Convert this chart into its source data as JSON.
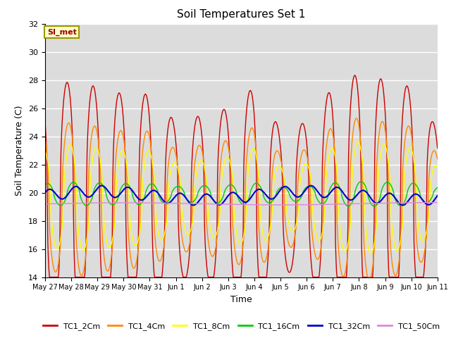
{
  "title": "Soil Temperatures Set 1",
  "xlabel": "Time",
  "ylabel": "Soil Temperature (C)",
  "ylim": [
    14,
    32
  ],
  "yticks": [
    14,
    16,
    18,
    20,
    22,
    24,
    26,
    28,
    30,
    32
  ],
  "background_color": "#dcdcdc",
  "series": [
    {
      "label": "TC1_2Cm",
      "color": "#cc0000",
      "lw": 1.0
    },
    {
      "label": "TC1_4Cm",
      "color": "#ff8800",
      "lw": 1.0
    },
    {
      "label": "TC1_8Cm",
      "color": "#ffff00",
      "lw": 1.0
    },
    {
      "label": "TC1_16Cm",
      "color": "#00cc00",
      "lw": 1.0
    },
    {
      "label": "TC1_32Cm",
      "color": "#0000cc",
      "lw": 1.5
    },
    {
      "label": "TC1_50Cm",
      "color": "#dd88dd",
      "lw": 1.0
    }
  ],
  "annotation_text": "SI_met",
  "annotation_color": "#990000",
  "annotation_bg": "#ffffcc",
  "annotation_border": "#999900",
  "xtick_labels": [
    "May 27",
    "May 28",
    "May 29",
    "May 30",
    "May 31",
    "Jun 1",
    "Jun 2",
    "Jun 3",
    "Jun 4",
    "Jun 5",
    "Jun 6",
    "Jun 7",
    "Jun 8",
    "Jun 9",
    "Jun 10",
    "Jun 11"
  ],
  "n_days": 15,
  "pts_per_day": 48,
  "base_temp": 19.5,
  "amp_2cm_per_day": [
    7.5,
    8.5,
    8.0,
    7.5,
    7.5,
    5.5,
    6.0,
    6.5,
    8.0,
    5.0,
    5.5,
    8.0,
    9.0,
    8.5,
    8.0,
    5.0
  ],
  "peak_hour": 14,
  "tc1_50cm_base": 19.2
}
